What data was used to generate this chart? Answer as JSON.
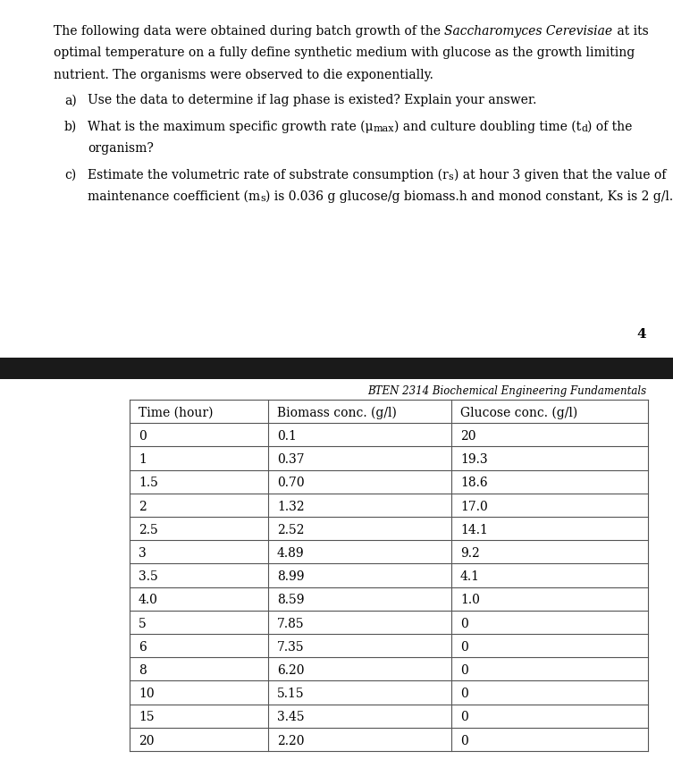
{
  "page_number": "4",
  "header_label": "BTEN 2314 Biochemical Engineering Fundamentals",
  "table_headers": [
    "Time (hour)",
    "Biomass conc. (g/l)",
    "Glucose conc. (g/l)"
  ],
  "table_data": [
    [
      "0",
      "0.1",
      "20"
    ],
    [
      "1",
      "0.37",
      "19.3"
    ],
    [
      "1.5",
      "0.70",
      "18.6"
    ],
    [
      "2",
      "1.32",
      "17.0"
    ],
    [
      "2.5",
      "2.52",
      "14.1"
    ],
    [
      "3",
      "4.89",
      "9.2"
    ],
    [
      "3.5",
      "8.99",
      "4.1"
    ],
    [
      "4.0",
      "8.59",
      "1.0"
    ],
    [
      "5",
      "7.85",
      "0"
    ],
    [
      "6",
      "7.35",
      "0"
    ],
    [
      "8",
      "6.20",
      "0"
    ],
    [
      "10",
      "5.15",
      "0"
    ],
    [
      "15",
      "3.45",
      "0"
    ],
    [
      "20",
      "2.20",
      "0"
    ]
  ],
  "background_color": "#ffffff",
  "dark_bar_color": "#1a1a1a",
  "text_color": "#000000",
  "font_size_body": 10.0,
  "font_size_table": 10.0,
  "font_size_header": 8.5,
  "font_size_page": 11.0,
  "fig_width": 7.53,
  "fig_height": 8.59,
  "dpi": 100
}
